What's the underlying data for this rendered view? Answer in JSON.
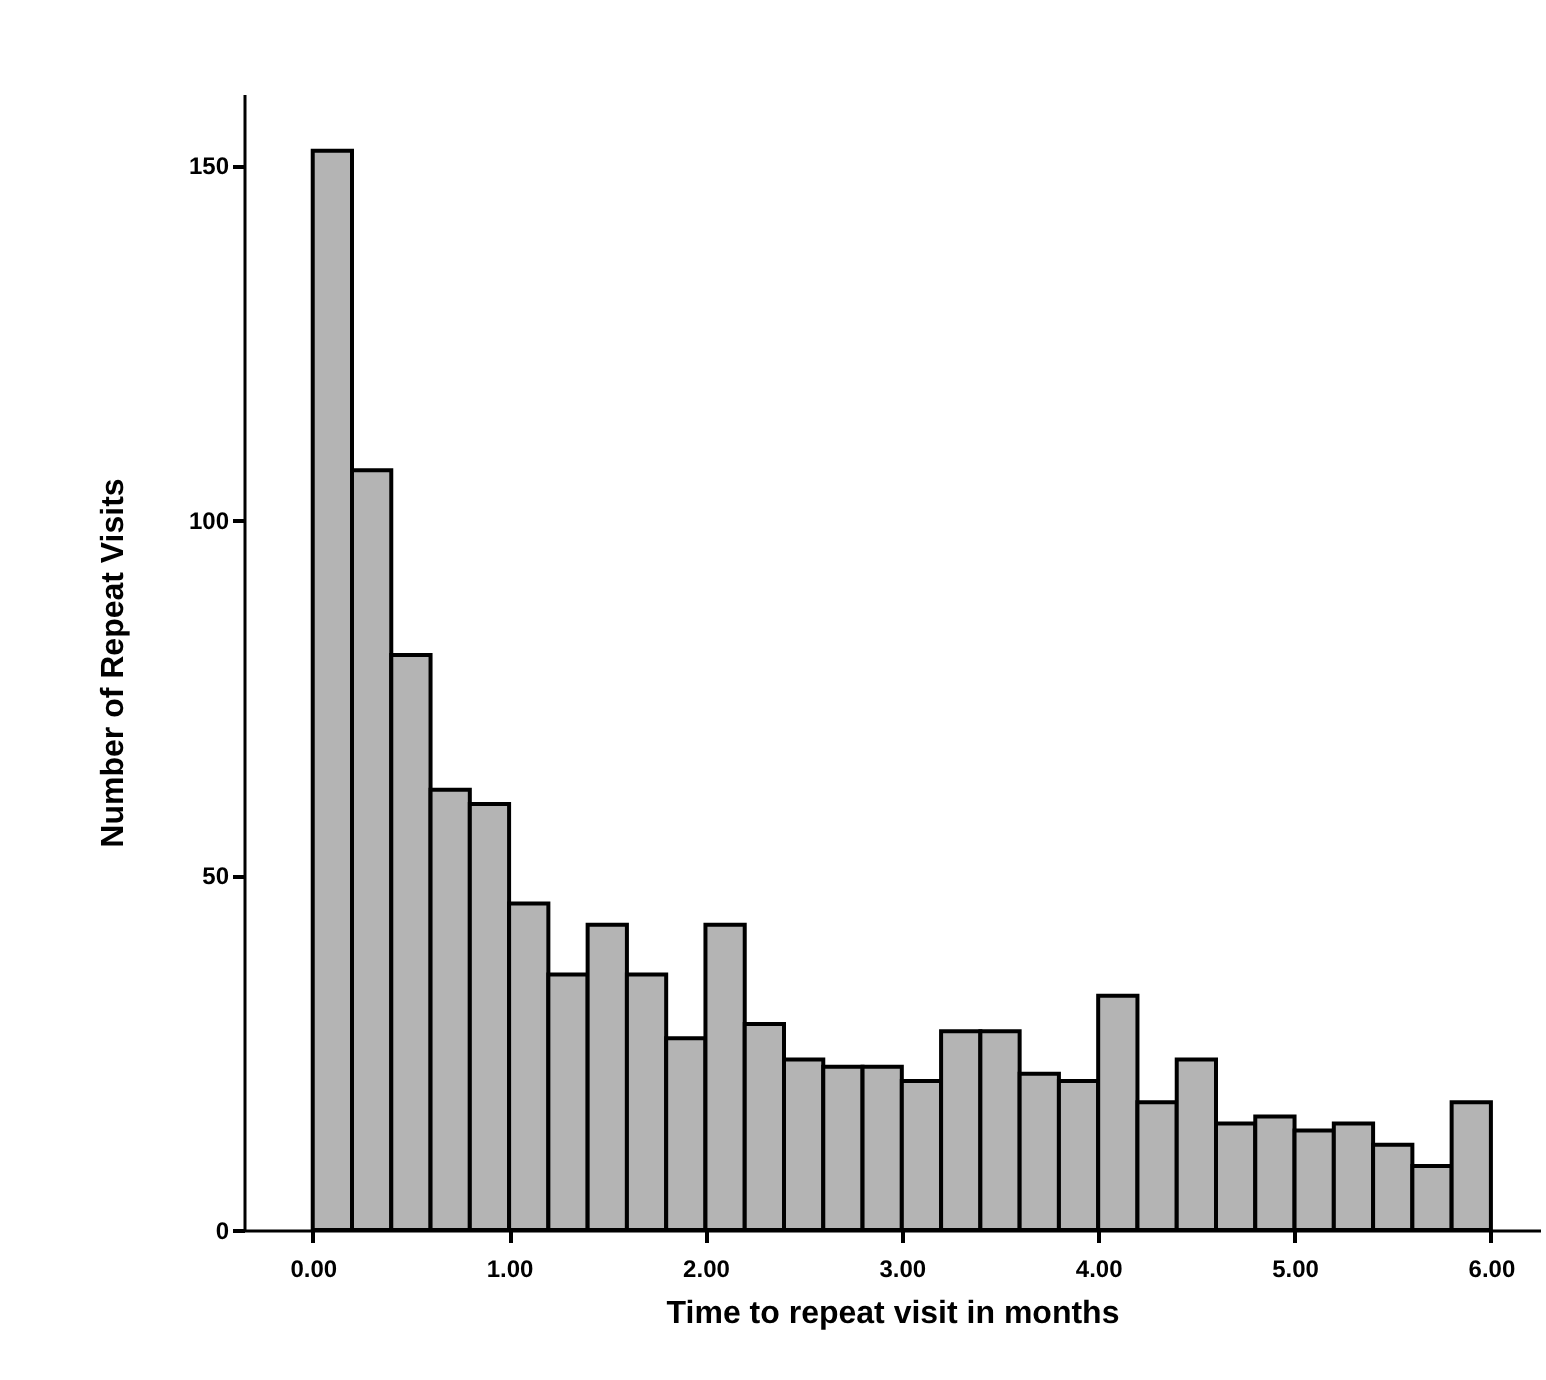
{
  "chart_data": {
    "type": "histogram",
    "xlabel": "Time to repeat visit in months",
    "ylabel": "Number of Repeat Visits",
    "bins": [
      0,
      0.2,
      0.4,
      0.6,
      0.8,
      1.0,
      1.2,
      1.4,
      1.6,
      1.8,
      2.0,
      2.2,
      2.4,
      2.6,
      2.8,
      3.0,
      3.2,
      3.4,
      3.6,
      3.8,
      4.0,
      4.2,
      4.4,
      4.6,
      4.8,
      5.0,
      5.2,
      5.4,
      5.6,
      5.8,
      6.0
    ],
    "values": [
      152,
      107,
      81,
      62,
      60,
      46,
      36,
      43,
      36,
      27,
      43,
      29,
      24,
      23,
      23,
      21,
      28,
      28,
      22,
      21,
      33,
      18,
      24,
      15,
      16,
      14,
      15,
      12,
      9,
      18
    ],
    "color": "#b4b4b4",
    "xlim": [
      -0.35,
      6.25
    ],
    "xticks": [
      {
        "value": 0,
        "label": "0.00"
      },
      {
        "value": 1,
        "label": "1.00"
      },
      {
        "value": 2,
        "label": "2.00"
      },
      {
        "value": 3,
        "label": "3.00"
      },
      {
        "value": 4,
        "label": "4.00"
      },
      {
        "value": 5,
        "label": "5.00"
      },
      {
        "value": 6,
        "label": "6.00"
      }
    ],
    "ylim": [
      0,
      160
    ],
    "yticks": [
      0,
      50,
      100,
      150
    ],
    "grid": false
  }
}
